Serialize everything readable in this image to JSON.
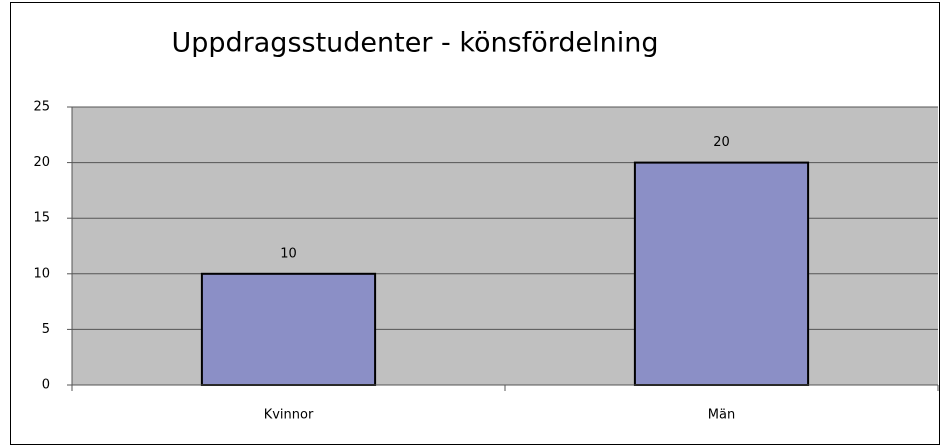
{
  "chart_data": {
    "type": "bar",
    "title": "Uppdragsstudenter - könsfördelning",
    "categories": [
      "Kvinnor",
      "Män"
    ],
    "values": [
      10,
      20
    ],
    "color": "#8b8fc6",
    "ylim": [
      0,
      25
    ],
    "yticks": [
      0,
      5,
      10,
      15,
      20,
      25
    ],
    "grid": true
  }
}
